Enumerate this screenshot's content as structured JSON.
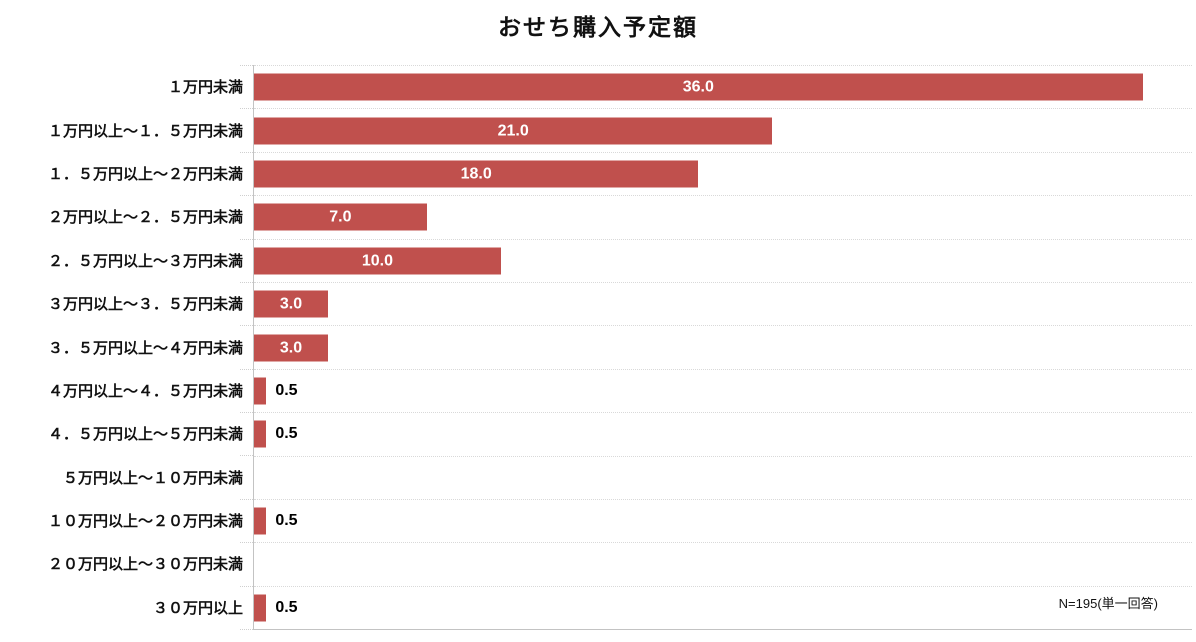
{
  "title": "おせち購入予定額",
  "note": "N=195(単一回答)",
  "chart_data": {
    "type": "bar",
    "orientation": "horizontal",
    "title": "おせち購入予定額",
    "categories": [
      "１万円未満",
      "１万円以上～１．５万円未満",
      "１．５万円以上～２万円未満",
      "２万円以上～２．５万円未満",
      "２．５万円以上～３万円未満",
      "３万円以上～３．５万円未満",
      "３．５万円以上～４万円未満",
      "４万円以上～４．５万円未満",
      "４．５万円以上～５万円未満",
      "５万円以上～１０万円未満",
      "１０万円以上～２０万円未満",
      "２０万円以上～３０万円未満",
      "３０万円以上"
    ],
    "values": [
      36.0,
      21.0,
      18.0,
      7.0,
      10.0,
      3.0,
      3.0,
      0.5,
      0.5,
      0,
      0.5,
      0,
      0.5
    ],
    "value_labels": [
      "36.0",
      "21.0",
      "18.0",
      "7.0",
      "10.0",
      "3.0",
      "3.0",
      "0.5",
      "0.5",
      "",
      "0.5",
      "",
      "0.5"
    ],
    "xlim": [
      0,
      38
    ],
    "bar_color": "#c0504d",
    "inside_label_color": "#ffffff",
    "outside_label_color": "#000000",
    "grid": "dotted-horizontal-separators",
    "legend": "none",
    "annotation": "N=195(単一回答)"
  }
}
